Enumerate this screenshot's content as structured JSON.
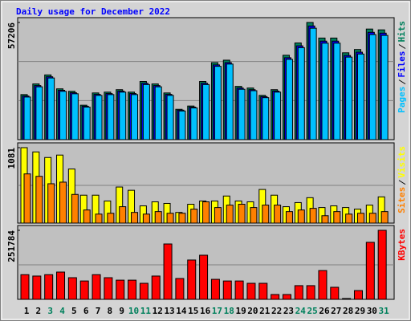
{
  "title": "Daily usage for December 2022",
  "title_color": "#0000ff",
  "categories": [
    "1",
    "2",
    "3",
    "4",
    "5",
    "6",
    "7",
    "8",
    "9",
    "10",
    "11",
    "12",
    "13",
    "14",
    "15",
    "16",
    "17",
    "18",
    "19",
    "20",
    "21",
    "22",
    "23",
    "24",
    "25",
    "26",
    "27",
    "28",
    "29",
    "30",
    "31"
  ],
  "category_colors": [
    "#000000",
    "#000000",
    "#00805c",
    "#00805c",
    "#000000",
    "#000000",
    "#000000",
    "#000000",
    "#000000",
    "#00805c",
    "#00805c",
    "#000000",
    "#000000",
    "#000000",
    "#000000",
    "#000000",
    "#00805c",
    "#00805c",
    "#000000",
    "#000000",
    "#000000",
    "#000000",
    "#000000",
    "#00805c",
    "#00805c",
    "#000000",
    "#000000",
    "#000000",
    "#000000",
    "#000000",
    "#00805c"
  ],
  "chart_data": [
    {
      "type": "bar",
      "ylim": [
        0,
        57206
      ],
      "yticks": [
        57206
      ],
      "series": [
        {
          "name": "Hits",
          "color": "#00805c",
          "values": [
            22000,
            27200,
            31600,
            24800,
            23600,
            16800,
            22800,
            23200,
            24400,
            23200,
            28400,
            27200,
            22800,
            14800,
            16400,
            28400,
            37600,
            38800,
            26000,
            25200,
            21600,
            24400,
            41200,
            47200,
            57206,
            49600,
            49600,
            42400,
            44000,
            54000,
            53600
          ]
        },
        {
          "name": "Files",
          "color": "#0000ff",
          "values": [
            21300,
            26400,
            30700,
            24100,
            22900,
            16300,
            22100,
            22500,
            23700,
            22500,
            27500,
            26400,
            22100,
            14400,
            15900,
            27500,
            36500,
            37600,
            25200,
            24400,
            21000,
            23700,
            40000,
            45800,
            55500,
            48100,
            48100,
            41100,
            42700,
            52400,
            52000
          ]
        },
        {
          "name": "Pages",
          "color": "#00c0ff",
          "values": [
            20800,
            25800,
            30100,
            23600,
            22400,
            15900,
            21600,
            22000,
            23200,
            22000,
            26900,
            25800,
            21600,
            14000,
            15500,
            26900,
            35800,
            36900,
            24600,
            23900,
            20500,
            23200,
            39200,
            44900,
            54400,
            47100,
            47100,
            40300,
            41800,
            51300,
            50900
          ]
        }
      ]
    },
    {
      "type": "bar",
      "ylim": [
        0,
        1081
      ],
      "yticks": [
        1081
      ],
      "series": [
        {
          "name": "Visits",
          "color": "#ffff00",
          "values": [
            1081,
            1020,
            940,
            975,
            775,
            400,
            400,
            317,
            517,
            470,
            247,
            305,
            282,
            153,
            270,
            317,
            317,
            388,
            317,
            305,
            482,
            400,
            235,
            294,
            364,
            223,
            247,
            223,
            200,
            258,
            376
          ]
        },
        {
          "name": "Sites",
          "color": "#ff8000",
          "values": [
            705,
            670,
            564,
            587,
            411,
            188,
            129,
            141,
            235,
            153,
            129,
            165,
            141,
            141,
            200,
            305,
            223,
            258,
            270,
            223,
            258,
            258,
            165,
            188,
            211,
            106,
            165,
            129,
            141,
            141,
            165
          ]
        }
      ]
    },
    {
      "type": "bar",
      "ylim": [
        0,
        251784
      ],
      "yticks": [
        251784
      ],
      "series": [
        {
          "name": "KBytes",
          "color": "#ff0000",
          "values": [
            90000,
            85000,
            90000,
            99500,
            79000,
            67000,
            90000,
            79000,
            70000,
            70000,
            58500,
            85000,
            202000,
            76000,
            143500,
            161000,
            73000,
            67000,
            67000,
            58500,
            58500,
            17600,
            17600,
            50000,
            50000,
            105000,
            44000,
            3000,
            32000,
            208000,
            251784
          ]
        }
      ]
    }
  ]
}
